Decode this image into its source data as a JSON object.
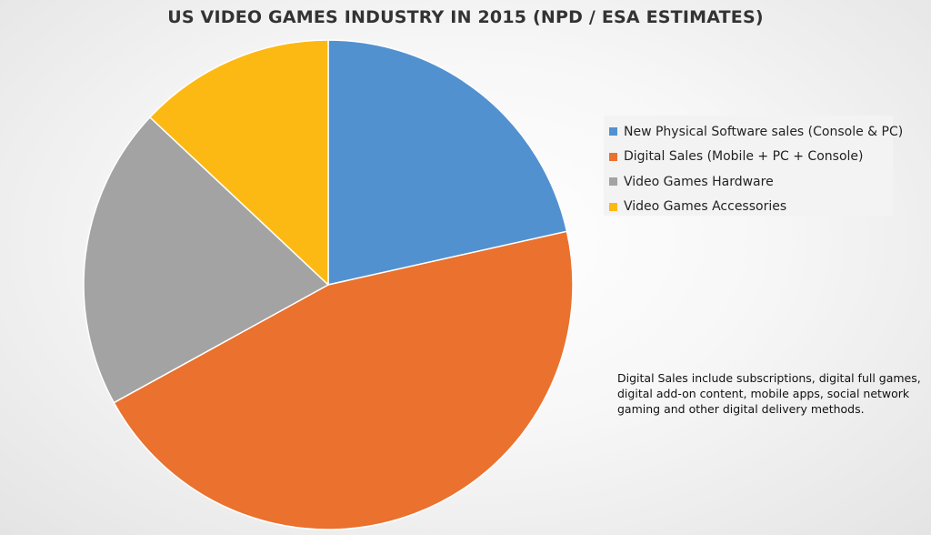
{
  "chart_data": {
    "type": "pie",
    "title": "US VIDEO GAMES INDUSTRY IN 2015 (NPD / ESA ESTIMATES)",
    "categories": [
      "New Physical Software sales (Console & PC)",
      "Digital Sales (Mobile + PC + Console)",
      "Video Games Hardware",
      "Video Games Accessories"
    ],
    "values": [
      21.5,
      45.5,
      20.0,
      13.0
    ],
    "unit": "percent (estimated)",
    "colors": [
      "#5291d0",
      "#ea712e",
      "#a3a3a3",
      "#fdb913"
    ],
    "legend_position": "right"
  },
  "footnote": {
    "lines": [
      "Digital Sales include subscriptions, digital full games,",
      "digital add-on content, mobile apps, social network",
      "gaming and other digital delivery methods."
    ]
  }
}
